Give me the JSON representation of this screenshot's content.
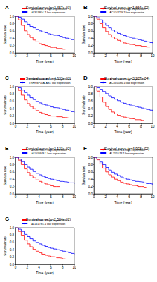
{
  "chart_data": [
    {
      "type": "step",
      "label": "A",
      "title": "Survival curve (p=3.457e-03)",
      "x_label": "Time (year)",
      "y_label": "Survival rate",
      "xlim": [
        0,
        10
      ],
      "xticks": [
        0,
        2,
        4,
        6,
        8,
        10
      ],
      "ylim": [
        0,
        1
      ],
      "yticks": [
        {
          "value": 0,
          "label": "0.0"
        },
        {
          "value": 0.2,
          "label": "0.2"
        },
        {
          "value": 0.4,
          "label": "0.4"
        },
        {
          "value": 0.6,
          "label": "0.6"
        },
        {
          "value": 0.8,
          "label": "0.8"
        },
        {
          "value": 1,
          "label": "1.0"
        }
      ],
      "grid": false,
      "marker": "none",
      "x": [
        0,
        0.5,
        1,
        1.5,
        2,
        2.5,
        3,
        3.5,
        4,
        4.5,
        5,
        5.5,
        6,
        6.5,
        7,
        7.5,
        8,
        8.5,
        9,
        9.5,
        10
      ],
      "series": [
        {
          "name": "AL353804.1 high expression",
          "color": "#ff0000",
          "values": [
            1,
            0.9,
            0.75,
            0.6,
            0.5,
            0.42,
            0.35,
            0.3,
            0.25,
            0.22,
            0.2,
            0.18,
            0.15,
            0.15,
            0.12,
            0.12,
            0.1,
            null,
            null,
            null,
            null
          ]
        },
        {
          "name": "AL353804.1 low expression",
          "color": "#0000ff",
          "values": [
            1,
            0.97,
            0.92,
            0.85,
            0.78,
            0.72,
            0.68,
            0.64,
            0.6,
            0.57,
            0.55,
            0.52,
            0.5,
            0.48,
            0.47,
            0.45,
            0.42,
            0.4,
            0.38,
            0.36,
            0.35
          ]
        }
      ]
    },
    {
      "type": "step",
      "label": "B",
      "title": "Survival curve (p=1.664e-02)",
      "x_label": "Time (year)",
      "y_label": "Survival rate",
      "xlim": [
        0,
        10
      ],
      "xticks": [
        0,
        2,
        4,
        6,
        8,
        10
      ],
      "ylim": [
        0,
        1
      ],
      "yticks": [
        {
          "value": 0,
          "label": "0.0"
        },
        {
          "value": 0.2,
          "label": "0.2"
        },
        {
          "value": 0.4,
          "label": "0.4"
        },
        {
          "value": 0.6,
          "label": "0.6"
        },
        {
          "value": 0.8,
          "label": "0.8"
        },
        {
          "value": 1,
          "label": "1.0"
        }
      ],
      "grid": false,
      "marker": "none",
      "x": [
        0,
        0.5,
        1,
        1.5,
        2,
        2.5,
        3,
        3.5,
        4,
        4.5,
        5,
        5.5,
        6,
        6.5,
        7,
        7.5,
        8,
        8.5,
        9,
        9.5,
        10
      ],
      "series": [
        {
          "name": "AC010719.1 high expression",
          "color": "#ff0000",
          "values": [
            1,
            0.92,
            0.8,
            0.68,
            0.58,
            0.5,
            0.43,
            0.38,
            0.34,
            0.3,
            0.27,
            0.25,
            0.23,
            0.22,
            0.2,
            0.2,
            0.18,
            0.18,
            0.16,
            null,
            null
          ]
        },
        {
          "name": "AC010719.1 low expression",
          "color": "#0000ff",
          "values": [
            1,
            0.96,
            0.9,
            0.82,
            0.75,
            0.68,
            0.62,
            0.57,
            0.53,
            0.5,
            0.47,
            0.44,
            0.42,
            0.4,
            0.38,
            0.36,
            0.34,
            0.32,
            0.3,
            0.28,
            0.26
          ]
        }
      ]
    },
    {
      "type": "step",
      "label": "C",
      "title": "Survival curve (p=4.633e-03)",
      "x_label": "Time (year)",
      "y_label": "Survival rate",
      "xlim": [
        0,
        10
      ],
      "xticks": [
        0,
        2,
        4,
        6,
        8,
        10
      ],
      "ylim": [
        0,
        1
      ],
      "yticks": [
        {
          "value": 0,
          "label": "0.0"
        },
        {
          "value": 0.2,
          "label": "0.2"
        },
        {
          "value": 0.4,
          "label": "0.4"
        },
        {
          "value": 0.6,
          "label": "0.6"
        },
        {
          "value": 0.8,
          "label": "0.8"
        },
        {
          "value": 1,
          "label": "1.0"
        }
      ],
      "grid": false,
      "marker": "none",
      "x": [
        0,
        0.5,
        1,
        1.5,
        2,
        2.5,
        3,
        3.5,
        4,
        4.5,
        5,
        5.5,
        6,
        6.5,
        7,
        7.5,
        8,
        8.5,
        9,
        9.5,
        10
      ],
      "series": [
        {
          "name": "TNFRSF10A-AS1 high expression",
          "color": "#ff0000",
          "values": [
            1,
            0.9,
            0.77,
            0.64,
            0.54,
            0.46,
            0.4,
            0.35,
            0.3,
            0.27,
            0.24,
            0.22,
            0.2,
            0.2,
            0.18,
            0.18,
            0.16,
            0.15,
            null,
            null,
            null
          ]
        },
        {
          "name": "TNFRSF10A-AS1 low expression",
          "color": "#0000ff",
          "values": [
            1,
            0.97,
            0.91,
            0.84,
            0.77,
            0.7,
            0.65,
            0.6,
            0.56,
            0.52,
            0.5,
            0.48,
            0.45,
            0.43,
            0.42,
            0.4,
            0.38,
            0.36,
            0.34,
            0.32,
            0.3
          ]
        }
      ]
    },
    {
      "type": "step",
      "label": "D",
      "title": "Survival curve (p=3.267e-04)",
      "x_label": "Time (year)",
      "y_label": "Survival rate",
      "xlim": [
        0,
        10
      ],
      "xticks": [
        0,
        2,
        4,
        6,
        8,
        10
      ],
      "ylim": [
        0,
        1
      ],
      "yticks": [
        {
          "value": 0,
          "label": "0.0"
        },
        {
          "value": 0.2,
          "label": "0.2"
        },
        {
          "value": 0.4,
          "label": "0.4"
        },
        {
          "value": 0.6,
          "label": "0.6"
        },
        {
          "value": 0.8,
          "label": "0.8"
        },
        {
          "value": 1,
          "label": "1.0"
        }
      ],
      "grid": false,
      "marker": "none",
      "x": [
        0,
        0.5,
        1,
        1.5,
        2,
        2.5,
        3,
        3.5,
        4,
        4.5,
        5,
        5.5,
        6,
        6.5,
        7,
        7.5,
        8,
        8.5,
        9,
        9.5,
        10
      ],
      "series": [
        {
          "name": "AC005586.1 high expression",
          "color": "#ff0000",
          "values": [
            1,
            0.88,
            0.72,
            0.58,
            0.46,
            0.38,
            0.31,
            0.26,
            0.22,
            0.19,
            0.17,
            0.15,
            0.13,
            0.12,
            0.1,
            0.1,
            0.08,
            null,
            null,
            null,
            null
          ]
        },
        {
          "name": "AC005586.1 low expression",
          "color": "#0000ff",
          "values": [
            1,
            0.97,
            0.93,
            0.87,
            0.81,
            0.75,
            0.7,
            0.66,
            0.62,
            0.58,
            0.55,
            0.52,
            0.5,
            0.48,
            0.46,
            0.44,
            0.42,
            0.4,
            0.38,
            0.36,
            0.34
          ]
        }
      ]
    },
    {
      "type": "step",
      "label": "E",
      "title": "Survival curve (p=3.133e-02)",
      "x_label": "Time (year)",
      "y_label": "Survival rate",
      "xlim": [
        0,
        10
      ],
      "xticks": [
        0,
        2,
        4,
        6,
        8,
        10
      ],
      "ylim": [
        0,
        1
      ],
      "yticks": [
        {
          "value": 0,
          "label": "0.0"
        },
        {
          "value": 0.2,
          "label": "0.2"
        },
        {
          "value": 0.4,
          "label": "0.4"
        },
        {
          "value": 0.6,
          "label": "0.6"
        },
        {
          "value": 0.8,
          "label": "0.8"
        },
        {
          "value": 1,
          "label": "1.0"
        }
      ],
      "grid": false,
      "marker": "none",
      "x": [
        0,
        0.5,
        1,
        1.5,
        2,
        2.5,
        3,
        3.5,
        4,
        4.5,
        5,
        5.5,
        6,
        6.5,
        7,
        7.5,
        8,
        8.5,
        9,
        9.5,
        10
      ],
      "series": [
        {
          "name": "AC009948.1 high expression",
          "color": "#ff0000",
          "values": [
            1,
            0.92,
            0.8,
            0.68,
            0.58,
            0.5,
            0.44,
            0.38,
            0.34,
            0.3,
            0.27,
            0.25,
            0.22,
            0.2,
            0.2,
            null,
            null,
            null,
            null,
            null,
            null
          ]
        },
        {
          "name": "AC009948.1 low expression",
          "color": "#0000ff",
          "values": [
            1,
            0.95,
            0.88,
            0.8,
            0.73,
            0.67,
            0.61,
            0.56,
            0.52,
            0.48,
            0.45,
            0.42,
            0.4,
            0.38,
            0.36,
            0.34,
            0.33,
            0.32,
            0.3,
            0.3,
            0.28
          ]
        }
      ]
    },
    {
      "type": "step",
      "label": "F",
      "title": "Survival curve (p=4.903e-02)",
      "x_label": "Time (year)",
      "y_label": "Survival rate",
      "xlim": [
        0,
        10
      ],
      "xticks": [
        0,
        2,
        4,
        6,
        8,
        10
      ],
      "ylim": [
        0,
        1
      ],
      "yticks": [
        {
          "value": 0,
          "label": "0.0"
        },
        {
          "value": 0.2,
          "label": "0.2"
        },
        {
          "value": 0.4,
          "label": "0.4"
        },
        {
          "value": 0.6,
          "label": "0.6"
        },
        {
          "value": 0.8,
          "label": "0.8"
        },
        {
          "value": 1,
          "label": "1.0"
        }
      ],
      "grid": false,
      "marker": "none",
      "x": [
        0,
        0.5,
        1,
        1.5,
        2,
        2.5,
        3,
        3.5,
        4,
        4.5,
        5,
        5.5,
        6,
        6.5,
        7,
        7.5,
        8,
        8.5,
        9,
        9.5,
        10
      ],
      "series": [
        {
          "name": "AL355574.1 high expression",
          "color": "#ff0000",
          "values": [
            1,
            0.93,
            0.82,
            0.7,
            0.6,
            0.52,
            0.46,
            0.4,
            0.36,
            0.32,
            0.29,
            0.27,
            0.25,
            0.23,
            0.22,
            0.2,
            0.2,
            0.18,
            null,
            null,
            null
          ]
        },
        {
          "name": "AL355574.1 low expression",
          "color": "#0000ff",
          "values": [
            1,
            0.95,
            0.87,
            0.8,
            0.72,
            0.65,
            0.59,
            0.54,
            0.5,
            0.46,
            0.43,
            0.4,
            0.38,
            0.36,
            0.34,
            0.33,
            0.32,
            0.3,
            0.28,
            0.27,
            0.25
          ]
        }
      ]
    },
    {
      "type": "step",
      "label": "G",
      "title": "Survival curve (p=2.584e-02)",
      "x_label": "Time (year)",
      "y_label": "Survival rate",
      "xlim": [
        0,
        10
      ],
      "xticks": [
        0,
        2,
        4,
        6,
        8,
        10
      ],
      "ylim": [
        0,
        1
      ],
      "yticks": [
        {
          "value": 0,
          "label": "0.0"
        },
        {
          "value": 0.2,
          "label": "0.2"
        },
        {
          "value": 0.4,
          "label": "0.4"
        },
        {
          "value": 0.6,
          "label": "0.6"
        },
        {
          "value": 0.8,
          "label": "0.8"
        },
        {
          "value": 1,
          "label": "1.0"
        }
      ],
      "grid": false,
      "marker": "none",
      "x": [
        0,
        0.5,
        1,
        1.5,
        2,
        2.5,
        3,
        3.5,
        4,
        4.5,
        5,
        5.5,
        6,
        6.5,
        7,
        7.5,
        8,
        8.5,
        9,
        9.5,
        10
      ],
      "series": [
        {
          "name": "AL161785.1 high expression",
          "color": "#ff0000",
          "values": [
            1,
            0.9,
            0.78,
            0.66,
            0.56,
            0.48,
            0.41,
            0.36,
            0.32,
            0.28,
            0.25,
            0.23,
            0.21,
            0.2,
            0.18,
            0.17,
            0.15,
            null,
            null,
            null,
            null
          ]
        },
        {
          "name": "AL161785.1 low expression",
          "color": "#0000ff",
          "values": [
            1,
            0.96,
            0.9,
            0.82,
            0.76,
            0.7,
            0.64,
            0.6,
            0.56,
            0.52,
            0.49,
            0.46,
            0.44,
            0.42,
            0.4,
            0.38,
            0.36,
            0.34,
            0.32,
            0.3,
            0.28
          ]
        }
      ]
    }
  ]
}
